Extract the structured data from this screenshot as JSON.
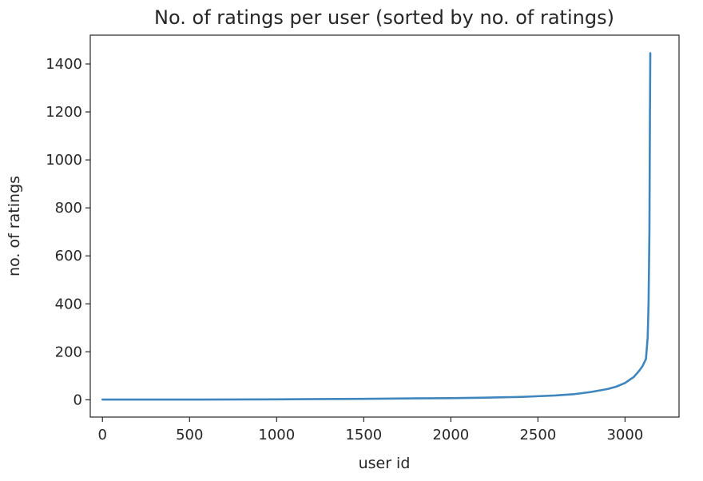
{
  "chart_data": {
    "type": "line",
    "title": "No. of ratings per user (sorted by no. of ratings)",
    "xlabel": "user id",
    "ylabel": "no. of ratings",
    "xlim": [
      -70,
      3310
    ],
    "ylim": [
      -72,
      1520
    ],
    "xticks": [
      0,
      500,
      1000,
      1500,
      2000,
      2500,
      3000
    ],
    "yticks": [
      0,
      200,
      400,
      600,
      800,
      1000,
      1200,
      1400
    ],
    "grid": false,
    "legend": "none",
    "series": [
      {
        "color": "#3e86bd",
        "x": [
          0,
          500,
          1000,
          1500,
          1800,
          2000,
          2200,
          2400,
          2500,
          2600,
          2700,
          2800,
          2900,
          2950,
          3000,
          3050,
          3080,
          3100,
          3120,
          3130,
          3135,
          3140,
          3143,
          3145
        ],
        "y": [
          1,
          1,
          2,
          4,
          6,
          7,
          9,
          12,
          15,
          18,
          23,
          32,
          45,
          55,
          70,
          95,
          120,
          140,
          170,
          260,
          400,
          700,
          1200,
          1445
        ]
      }
    ]
  }
}
